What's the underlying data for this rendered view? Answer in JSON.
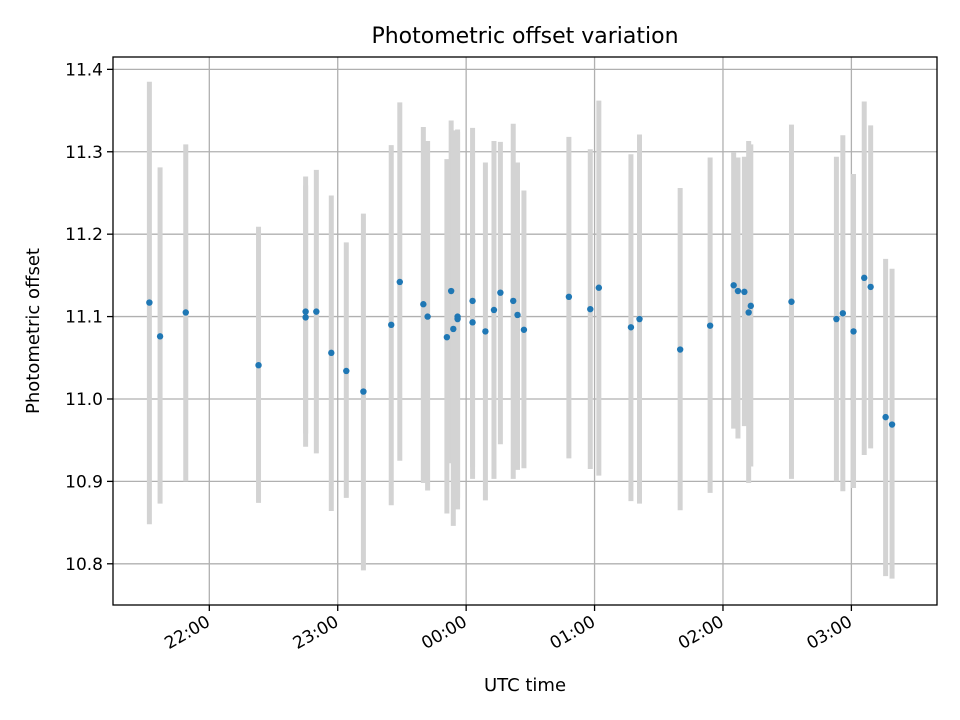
{
  "chart_data": {
    "type": "scatter",
    "title": "Photometric offset variation",
    "xlabel": "UTC time",
    "ylabel": "Photometric offset",
    "grid": true,
    "x_tick_labels": [
      "22:00",
      "23:00",
      "00:00",
      "01:00",
      "02:00",
      "03:00"
    ],
    "y_tick_labels": [
      "10.8",
      "10.9",
      "11.0",
      "11.1",
      "11.2",
      "11.3",
      "11.4"
    ],
    "y_ticks": [
      10.8,
      10.9,
      11.0,
      11.1,
      11.2,
      11.3,
      11.4
    ],
    "xlim_minutes_from_2200": [
      -45,
      340
    ],
    "ylim": [
      10.75,
      11.415
    ],
    "colors": {
      "point": "#1f77b4",
      "errorbar": "#d3d3d3",
      "grid": "#b0b0b0"
    },
    "series": [
      {
        "x": [
          "21:32",
          "21:37",
          "21:49",
          "22:23",
          "22:45",
          "22:45",
          "22:50",
          "22:57",
          "23:04",
          "23:12",
          "23:25",
          "23:29",
          "23:40",
          "23:42",
          "23:51",
          "23:53",
          "23:54",
          "23:56",
          "23:56",
          "24:03",
          "24:03",
          "24:09",
          "24:13",
          "24:16",
          "24:22",
          "24:24",
          "24:27",
          "24:48",
          "24:58",
          "25:02",
          "25:17",
          "25:21",
          "25:40",
          "25:54",
          "26:05",
          "26:07",
          "26:10",
          "26:12",
          "26:13",
          "26:32",
          "26:53",
          "26:56",
          "27:01",
          "27:06",
          "27:09",
          "27:16",
          "27:19"
        ],
        "y": [
          11.117,
          11.076,
          11.105,
          11.041,
          11.106,
          11.099,
          11.106,
          11.056,
          11.034,
          11.009,
          11.09,
          11.142,
          11.115,
          11.1,
          11.075,
          11.131,
          11.085,
          11.1,
          11.097,
          11.093,
          11.119,
          11.082,
          11.108,
          11.129,
          11.119,
          11.102,
          11.084,
          11.124,
          11.109,
          11.135,
          11.087,
          11.097,
          11.06,
          11.089,
          11.138,
          11.131,
          11.13,
          11.105,
          11.113,
          11.118,
          11.097,
          11.104,
          11.082,
          11.147,
          11.136,
          10.978,
          10.969
        ],
        "err_low": [
          10.848,
          10.873,
          10.9,
          10.874,
          10.942,
          10.958,
          10.934,
          10.864,
          10.88,
          10.792,
          10.871,
          10.925,
          10.898,
          10.889,
          10.861,
          10.922,
          10.846,
          10.866,
          10.88,
          10.903,
          10.917,
          10.877,
          10.903,
          10.945,
          10.903,
          10.914,
          10.916,
          10.928,
          10.915,
          10.907,
          10.876,
          10.873,
          10.865,
          10.886,
          10.964,
          10.952,
          10.967,
          10.898,
          10.918,
          10.903,
          10.9,
          10.888,
          10.892,
          10.932,
          10.94,
          10.785,
          10.782
        ],
        "err_high": [
          11.385,
          11.281,
          11.309,
          11.209,
          11.27,
          11.259,
          11.278,
          11.247,
          11.19,
          11.225,
          11.308,
          11.36,
          11.33,
          11.313,
          11.291,
          11.338,
          11.326,
          11.327,
          11.324,
          11.3,
          11.329,
          11.287,
          11.313,
          11.312,
          11.334,
          11.287,
          11.253,
          11.318,
          11.303,
          11.362,
          11.297,
          11.321,
          11.256,
          11.293,
          11.299,
          11.293,
          11.294,
          11.313,
          11.309,
          11.333,
          11.294,
          11.32,
          11.273,
          11.361,
          11.332,
          11.17,
          11.158
        ]
      }
    ]
  }
}
